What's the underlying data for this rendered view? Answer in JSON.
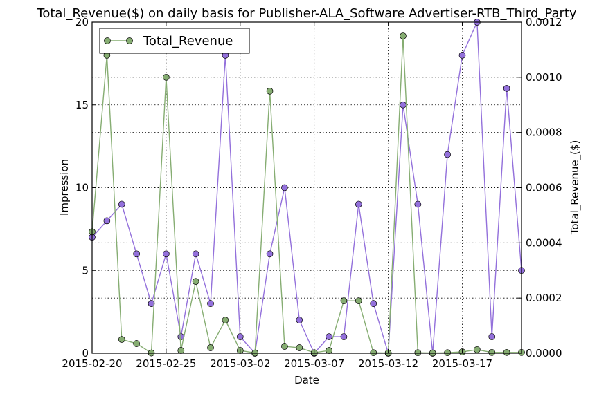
{
  "chart_data": {
    "type": "line",
    "title": "Total_Revenue($) on daily basis for Publisher-ALA_Software Advertiser-RTB_Third_Party",
    "xlabel": "Date",
    "ylabel_left": "Impression",
    "ylabel_right": "Total_Revenue_($)",
    "x": [
      "2015-02-20",
      "2015-02-21",
      "2015-02-22",
      "2015-02-23",
      "2015-02-24",
      "2015-02-25",
      "2015-02-26",
      "2015-02-27",
      "2015-02-28",
      "2015-03-01",
      "2015-03-02",
      "2015-03-03",
      "2015-03-04",
      "2015-03-05",
      "2015-03-06",
      "2015-03-07",
      "2015-03-08",
      "2015-03-09",
      "2015-03-10",
      "2015-03-11",
      "2015-03-12",
      "2015-03-13",
      "2015-03-14",
      "2015-03-15",
      "2015-03-16",
      "2015-03-17",
      "2015-03-18",
      "2015-03-19",
      "2015-03-20",
      "2015-03-21"
    ],
    "xticks": [
      "2015-02-20",
      "2015-02-25",
      "2015-03-02",
      "2015-03-07",
      "2015-03-12",
      "2015-03-17"
    ],
    "ylim_left": [
      0,
      20
    ],
    "yticks_left": [
      0,
      5,
      10,
      15,
      20
    ],
    "ylim_right": [
      0,
      0.0012
    ],
    "yticks_right": [
      "0.0000",
      "0.0002",
      "0.0004",
      "0.0006",
      "0.0008",
      "0.0010",
      "0.0012"
    ],
    "grid": true,
    "legend_position": "top-left",
    "series": [
      {
        "axis": "left",
        "color": "#9370db",
        "values": [
          7,
          8,
          9,
          6,
          3,
          6,
          1,
          6,
          3,
          18,
          1,
          0,
          6,
          10,
          2,
          0,
          1,
          1,
          9,
          3,
          0,
          15,
          9,
          0,
          12,
          18,
          20,
          1,
          16,
          5
        ]
      },
      {
        "name": "Total_Revenue",
        "axis": "right",
        "color": "#86ad72",
        "values": [
          0.00044,
          0.00108,
          5e-05,
          3.5e-05,
          1e-06,
          0.001,
          1e-05,
          0.00026,
          2e-05,
          0.00012,
          1e-05,
          1e-06,
          0.00095,
          2.5e-05,
          2e-05,
          2e-06,
          1e-05,
          0.00019,
          0.00019,
          2e-06,
          1e-06,
          0.00115,
          2e-06,
          1e-06,
          2e-06,
          5e-06,
          1.3e-05,
          3e-06,
          3e-06,
          3e-06
        ]
      }
    ]
  }
}
